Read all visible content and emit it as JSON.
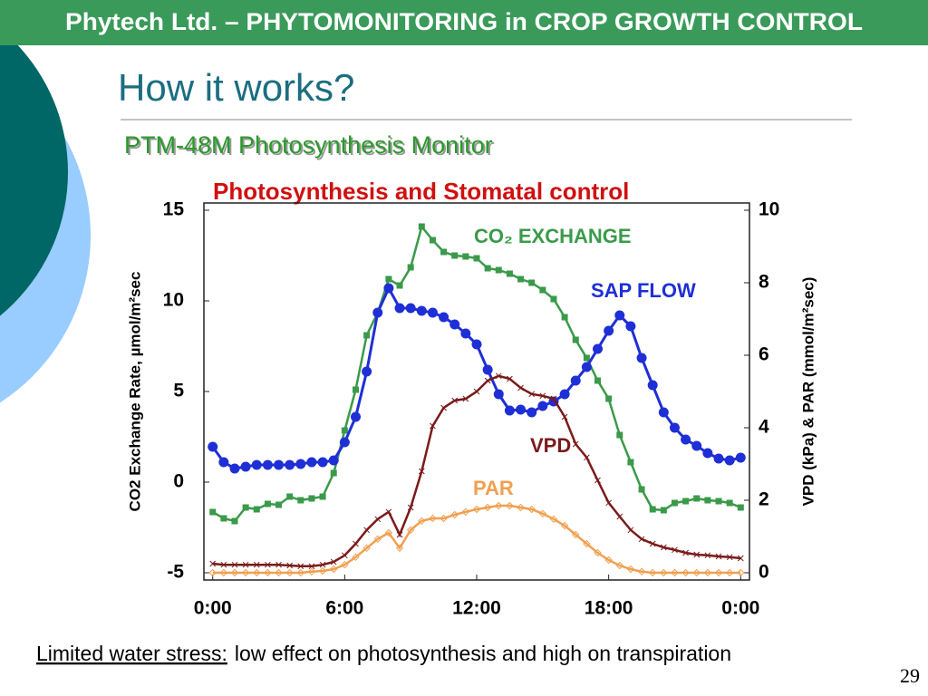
{
  "slide": {
    "header": "Phytech Ltd. – PHYTOMONITORING in CROP GROWTH CONTROL",
    "title": "How it works?",
    "subtitle": "PTM-48M Photosynthesis Monitor",
    "footer": {
      "emphasis": "Limited water stress:",
      "text": "low effect on photosynthesis and high  on transpiration"
    },
    "page_number": "29"
  },
  "chart_data": {
    "type": "line",
    "title": "Photosynthesis and Stomatal control",
    "ylabel": "CO2 Exchange Rate, µmol/m²sec",
    "y2label": "VPD (kPa) & PAR (mmol/m²sec)",
    "xlim": [
      -0.4,
      24.4
    ],
    "ylim": [
      -5.4,
      15.4
    ],
    "y2lim": [
      -0.2,
      10.2
    ],
    "xticks": [
      {
        "value": 0,
        "label": "0:00"
      },
      {
        "value": 6,
        "label": "6:00"
      },
      {
        "value": 12,
        "label": "12:00"
      },
      {
        "value": 18,
        "label": "18:00"
      },
      {
        "value": 24,
        "label": "0:00"
      }
    ],
    "yticks": [
      -5,
      0,
      5,
      10,
      15
    ],
    "y2ticks": [
      0,
      2,
      4,
      6,
      8,
      10
    ],
    "x": [
      0,
      0.5,
      1,
      1.5,
      2,
      2.5,
      3,
      3.5,
      4,
      4.5,
      5,
      5.5,
      6,
      6.5,
      7,
      7.5,
      8,
      8.5,
      9,
      9.5,
      10,
      10.5,
      11,
      11.5,
      12,
      12.5,
      13,
      13.5,
      14,
      14.5,
      15,
      15.5,
      16,
      16.5,
      17,
      17.5,
      18,
      18.5,
      19,
      19.5,
      20,
      20.5,
      21,
      21.5,
      22,
      22.5,
      23,
      23.5,
      24
    ],
    "series": [
      {
        "name": "CO₂ EXCHANGE",
        "color": "#3a9a4a",
        "axis": "y",
        "marker": "square",
        "values": [
          -1.65,
          -2.0,
          -2.15,
          -1.4,
          -1.5,
          -1.2,
          -1.25,
          -0.8,
          -1.0,
          -0.9,
          -0.8,
          0.5,
          2.85,
          5.1,
          8.1,
          9.35,
          11.2,
          10.85,
          11.85,
          14.1,
          13.35,
          12.7,
          12.5,
          12.45,
          12.35,
          11.8,
          11.7,
          11.5,
          11.2,
          11.0,
          10.6,
          10.1,
          9.1,
          7.85,
          6.85,
          5.6,
          4.6,
          2.6,
          1.1,
          -0.4,
          -1.5,
          -1.55,
          -1.15,
          -1.05,
          -0.9,
          -1.0,
          -1.05,
          -1.15,
          -1.4
        ]
      },
      {
        "name": "SAP FLOW",
        "color": "#1f2fd6",
        "axis": "y",
        "marker": "circle",
        "values": [
          1.95,
          1.1,
          0.75,
          0.85,
          0.95,
          0.95,
          0.95,
          0.95,
          1.0,
          1.1,
          1.1,
          1.2,
          2.2,
          3.6,
          6.1,
          9.35,
          10.7,
          9.6,
          9.6,
          9.45,
          9.35,
          9.1,
          8.7,
          8.2,
          7.6,
          6.2,
          4.85,
          3.95,
          4.0,
          3.85,
          4.2,
          4.45,
          4.85,
          5.6,
          6.35,
          7.35,
          8.35,
          9.2,
          8.6,
          6.85,
          5.35,
          3.85,
          3.0,
          2.35,
          2.0,
          1.6,
          1.3,
          1.2,
          1.35
        ]
      },
      {
        "name": "VPD",
        "color": "#7a1a1a",
        "axis": "y2",
        "marker": "cross",
        "values": [
          0.25,
          0.22,
          0.22,
          0.22,
          0.22,
          0.22,
          0.22,
          0.2,
          0.18,
          0.18,
          0.22,
          0.3,
          0.48,
          0.8,
          1.18,
          1.48,
          1.68,
          1.05,
          1.8,
          2.8,
          4.05,
          4.55,
          4.75,
          4.8,
          5.0,
          5.3,
          5.43,
          5.35,
          5.1,
          4.93,
          4.88,
          4.8,
          4.3,
          3.55,
          3.18,
          2.55,
          1.93,
          1.55,
          1.18,
          0.93,
          0.8,
          0.7,
          0.63,
          0.55,
          0.5,
          0.48,
          0.45,
          0.43,
          0.4
        ]
      },
      {
        "name": "PAR",
        "color": "#f0a050",
        "axis": "y2",
        "marker": "diamond",
        "values": [
          0,
          0,
          0,
          0,
          0,
          0,
          0,
          0,
          0,
          0.03,
          0.05,
          0.1,
          0.22,
          0.43,
          0.68,
          0.93,
          1.1,
          0.68,
          1.18,
          1.43,
          1.5,
          1.5,
          1.6,
          1.68,
          1.75,
          1.8,
          1.85,
          1.85,
          1.8,
          1.75,
          1.63,
          1.48,
          1.3,
          1.05,
          0.8,
          0.55,
          0.35,
          0.2,
          0.1,
          0.03,
          0,
          0,
          0,
          0,
          0,
          0,
          0,
          0,
          0
        ]
      }
    ]
  }
}
